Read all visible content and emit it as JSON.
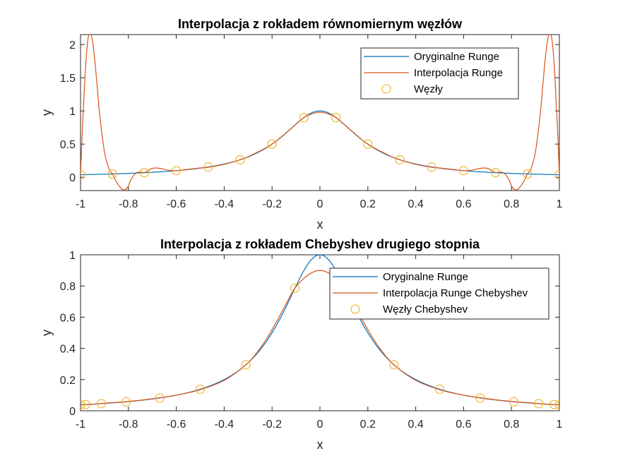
{
  "chart_data": [
    {
      "type": "line",
      "title": "Interpolacja z rokładem równomiernym węzłów",
      "xlabel": "x",
      "ylabel": "y",
      "xlim": [
        -1,
        1
      ],
      "ylim": [
        -0.2,
        2.15
      ],
      "xticks": [
        "-1",
        "-0.8",
        "-0.6",
        "-0.4",
        "-0.2",
        "0",
        "0.2",
        "0.4",
        "0.6",
        "0.8",
        "1"
      ],
      "yticks": [
        "0",
        "0.5",
        "1",
        "1.5",
        "2"
      ],
      "legend_position": "top-right",
      "grid": false,
      "series": [
        {
          "name": "Oryginalne Runge",
          "kind": "line",
          "color": "#0072BD",
          "function": "runge"
        },
        {
          "name": "Interpolacja Runge",
          "kind": "line",
          "color": "#D95319",
          "x": [
            -1,
            -0.99,
            -0.98,
            -0.97,
            -0.96,
            -0.95,
            -0.94,
            -0.93,
            -0.92,
            -0.9,
            -0.88,
            -0.866,
            -0.85,
            -0.83,
            -0.82,
            -0.81,
            -0.8,
            -0.79,
            -0.77,
            -0.75,
            -0.733,
            -0.71,
            -0.69,
            -0.67,
            -0.65,
            -0.63,
            -0.6,
            -0.55,
            -0.5,
            -0.467,
            -0.4,
            -0.333,
            -0.3,
            -0.2,
            -0.1,
            -0.067,
            -0.03,
            0,
            0.03,
            0.067,
            0.1,
            0.2,
            0.3,
            0.333,
            0.4,
            0.467,
            0.5,
            0.55,
            0.6,
            0.63,
            0.65,
            0.67,
            0.69,
            0.71,
            0.733,
            0.75,
            0.77,
            0.79,
            0.8,
            0.81,
            0.82,
            0.83,
            0.85,
            0.866,
            0.88,
            0.9,
            0.92,
            0.93,
            0.94,
            0.95,
            0.96,
            0.97,
            0.98,
            0.99,
            1
          ],
          "y": [
            0.038,
            0.9,
            1.6,
            2.05,
            2.18,
            2.05,
            1.75,
            1.35,
            0.95,
            0.38,
            0.12,
            0.05,
            -0.07,
            -0.17,
            -0.19,
            -0.18,
            -0.13,
            -0.04,
            0.06,
            0.08,
            0.069,
            0.12,
            0.14,
            0.135,
            0.12,
            0.105,
            0.1,
            0.12,
            0.14,
            0.15,
            0.195,
            0.265,
            0.31,
            0.5,
            0.8,
            0.9,
            0.96,
            0.98,
            0.96,
            0.9,
            0.8,
            0.5,
            0.31,
            0.265,
            0.195,
            0.15,
            0.14,
            0.12,
            0.1,
            0.105,
            0.12,
            0.135,
            0.14,
            0.12,
            0.069,
            0.08,
            0.06,
            -0.04,
            -0.13,
            -0.18,
            -0.19,
            -0.17,
            -0.07,
            0.05,
            0.12,
            0.38,
            0.95,
            1.35,
            1.75,
            2.05,
            2.18,
            2.05,
            1.6,
            0.9,
            0.038
          ]
        },
        {
          "name": "Węzły",
          "kind": "markers",
          "color": "#EDB120",
          "x": [
            -1,
            -0.8667,
            -0.7333,
            -0.6,
            -0.4667,
            -0.3333,
            -0.2,
            -0.0667,
            0.0667,
            0.2,
            0.3333,
            0.4667,
            0.6,
            0.7333,
            0.8667,
            1
          ],
          "y": [
            0.0385,
            0.0506,
            0.0693,
            0.1,
            0.1552,
            0.2647,
            0.5,
            0.9,
            0.9,
            0.5,
            0.2647,
            0.1552,
            0.1,
            0.0693,
            0.0506,
            0.0385
          ]
        }
      ]
    },
    {
      "type": "line",
      "title": "Interpolacja z rokładem Chebyshev drugiego stopnia",
      "xlabel": "x",
      "ylabel": "y",
      "xlim": [
        -1,
        1
      ],
      "ylim": [
        0,
        1
      ],
      "xticks": [
        "-1",
        "-0.8",
        "-0.6",
        "-0.4",
        "-0.2",
        "0",
        "0.2",
        "0.4",
        "0.6",
        "0.8",
        "1"
      ],
      "yticks": [
        "0",
        "0.2",
        "0.4",
        "0.6",
        "0.8",
        "1"
      ],
      "legend_position": "top-right",
      "grid": false,
      "series": [
        {
          "name": "Oryginalne Runge",
          "kind": "line",
          "color": "#0072BD",
          "function": "runge"
        },
        {
          "name": "Interpolacja Runge Chebyshev",
          "kind": "line",
          "color": "#D95319",
          "x": [
            -1,
            -0.95,
            -0.9,
            -0.8,
            -0.7,
            -0.6,
            -0.5,
            -0.4,
            -0.309,
            -0.25,
            -0.2,
            -0.15,
            -0.105,
            -0.05,
            0,
            0.05,
            0.105,
            0.15,
            0.2,
            0.25,
            0.309,
            0.4,
            0.5,
            0.6,
            0.7,
            0.8,
            0.9,
            0.95,
            1
          ],
          "y": [
            0.038,
            0.042,
            0.048,
            0.06,
            0.077,
            0.1,
            0.135,
            0.195,
            0.295,
            0.4,
            0.52,
            0.66,
            0.785,
            0.87,
            0.9,
            0.87,
            0.785,
            0.66,
            0.52,
            0.4,
            0.295,
            0.195,
            0.135,
            0.1,
            0.077,
            0.06,
            0.048,
            0.042,
            0.038
          ]
        },
        {
          "name": "Węzły Chebyshev",
          "kind": "markers",
          "color": "#EDB120",
          "x": [
            -1,
            -0.9781,
            -0.9135,
            -0.809,
            -0.6691,
            -0.5,
            -0.309,
            -0.1045,
            0.1045,
            0.309,
            0.5,
            0.6691,
            0.809,
            0.9135,
            0.9781,
            1
          ],
          "y": [
            0.0385,
            0.0401,
            0.0457,
            0.0576,
            0.082,
            0.1379,
            0.2952,
            0.7855,
            0.7855,
            0.2952,
            0.1379,
            0.082,
            0.0576,
            0.0457,
            0.0401,
            0.0385
          ]
        }
      ]
    }
  ]
}
